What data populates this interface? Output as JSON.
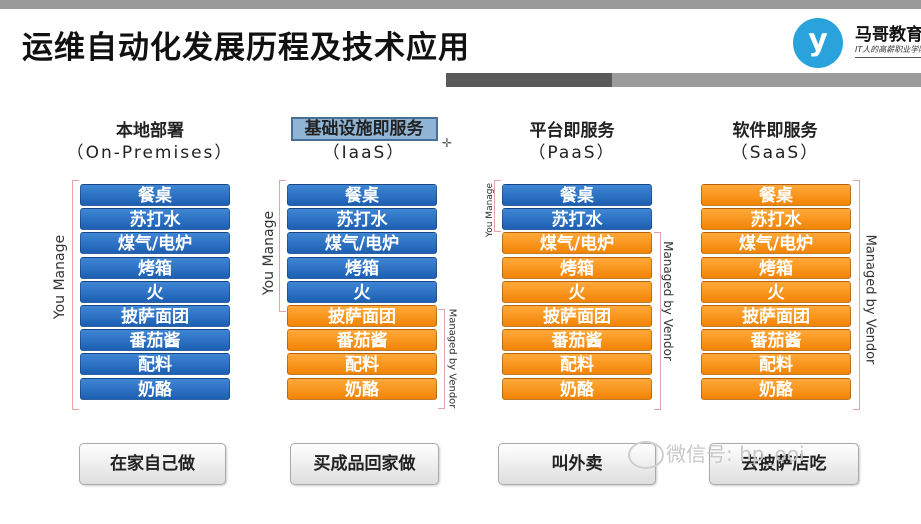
{
  "title": "运维自动化发展历程及技术应用",
  "logo": {
    "name": "马哥教育",
    "slogan": "IT人的高薪职业学院",
    "glyph": "y",
    "color": "#2aa3dc"
  },
  "columns": [
    {
      "heading": "本地部署",
      "subheading": "（On-Premises）",
      "layers": [
        {
          "label": "餐桌",
          "color": "blue"
        },
        {
          "label": "苏打水",
          "color": "blue"
        },
        {
          "label": "煤气/电炉",
          "color": "blue"
        },
        {
          "label": "烤箱",
          "color": "blue"
        },
        {
          "label": "火",
          "color": "blue"
        },
        {
          "label": "披萨面团",
          "color": "blue"
        },
        {
          "label": "番茄酱",
          "color": "blue"
        },
        {
          "label": "配料",
          "color": "blue"
        },
        {
          "label": "奶酪",
          "color": "blue"
        }
      ],
      "you_manage": "You Manage",
      "vendor_manage": "",
      "bottom": "在家自己做"
    },
    {
      "heading": "基础设施即服务",
      "subheading": "（IaaS）",
      "layers": [
        {
          "label": "餐桌",
          "color": "blue"
        },
        {
          "label": "苏打水",
          "color": "blue"
        },
        {
          "label": "煤气/电炉",
          "color": "blue"
        },
        {
          "label": "烤箱",
          "color": "blue"
        },
        {
          "label": "火",
          "color": "blue"
        },
        {
          "label": "披萨面团",
          "color": "orange"
        },
        {
          "label": "番茄酱",
          "color": "orange"
        },
        {
          "label": "配料",
          "color": "orange"
        },
        {
          "label": "奶酪",
          "color": "orange"
        }
      ],
      "you_manage": "You Manage",
      "vendor_manage": "Managed by Vendor",
      "bottom": "买成品回家做"
    },
    {
      "heading": "平台即服务",
      "subheading": "（PaaS）",
      "layers": [
        {
          "label": "餐桌",
          "color": "blue"
        },
        {
          "label": "苏打水",
          "color": "blue"
        },
        {
          "label": "煤气/电炉",
          "color": "orange"
        },
        {
          "label": "烤箱",
          "color": "orange"
        },
        {
          "label": "火",
          "color": "orange"
        },
        {
          "label": "披萨面团",
          "color": "orange"
        },
        {
          "label": "番茄酱",
          "color": "orange"
        },
        {
          "label": "配料",
          "color": "orange"
        },
        {
          "label": "奶酪",
          "color": "orange"
        }
      ],
      "you_manage": "You Manage",
      "vendor_manage": "Managed by Vendor",
      "bottom": "叫外卖"
    },
    {
      "heading": "软件即服务",
      "subheading": "（SaaS）",
      "layers": [
        {
          "label": "餐桌",
          "color": "orange"
        },
        {
          "label": "苏打水",
          "color": "orange"
        },
        {
          "label": "煤气/电炉",
          "color": "orange"
        },
        {
          "label": "烤箱",
          "color": "orange"
        },
        {
          "label": "火",
          "color": "orange"
        },
        {
          "label": "披萨面团",
          "color": "orange"
        },
        {
          "label": "番茄酱",
          "color": "orange"
        },
        {
          "label": "配料",
          "color": "orange"
        },
        {
          "label": "奶酪",
          "color": "orange"
        }
      ],
      "you_manage": "",
      "vendor_manage": "Managed by Vendor",
      "bottom": "去披萨店吃"
    }
  ],
  "watermark": "微信号: hp_ooi",
  "colors": {
    "you_manage": "#1d5fb3",
    "vendor": "#f28406",
    "accent_dark": "#555555",
    "accent_light": "#9c9c9c"
  }
}
